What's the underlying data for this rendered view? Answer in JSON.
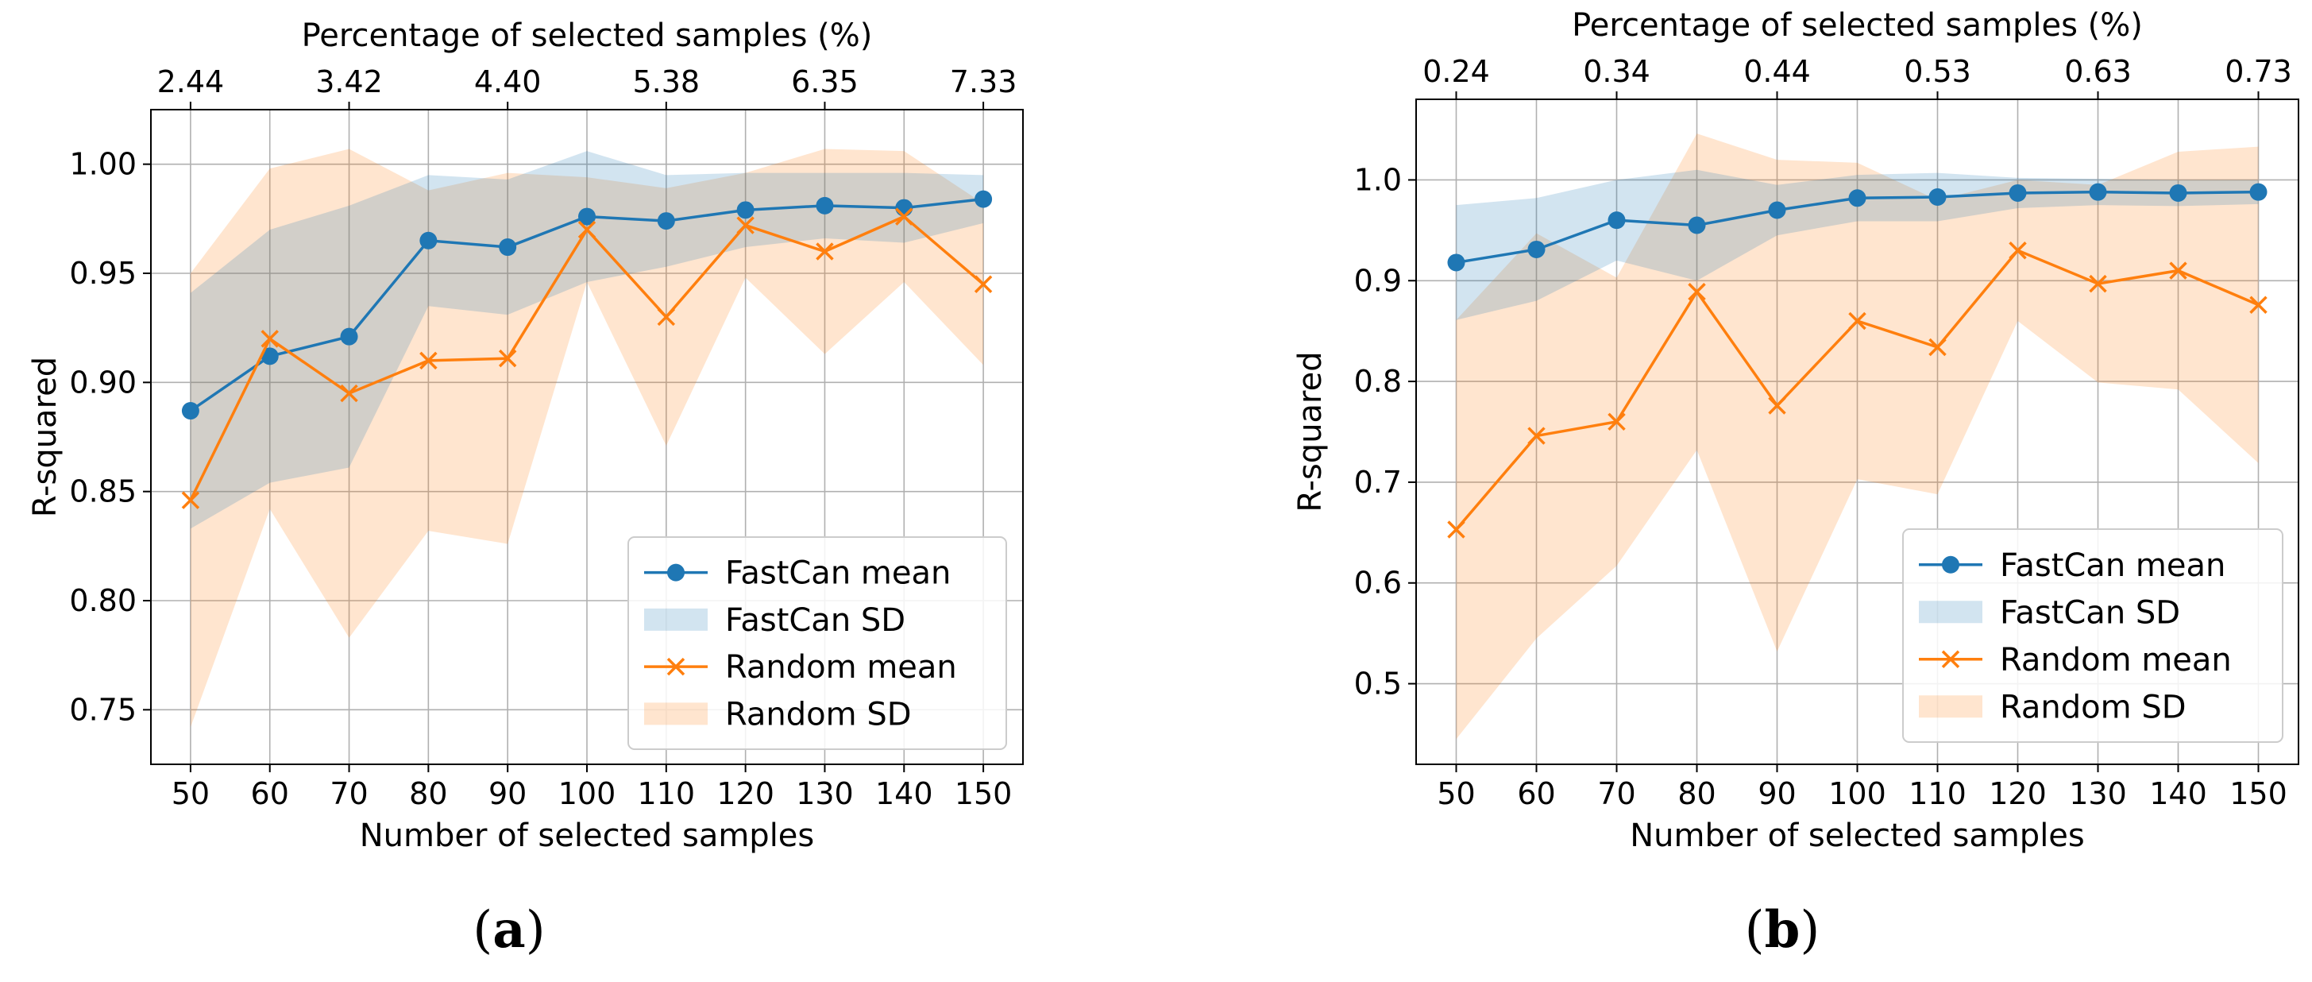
{
  "panels": [
    {
      "label": "(a)",
      "label_bold": "a"
    },
    {
      "label": "(b)",
      "label_bold": "b"
    }
  ],
  "colors": {
    "fastcan": "#1f77b4",
    "random": "#ff7f0e",
    "fastcan_band": "#1f77b4",
    "random_band": "#ff7f0e"
  },
  "chart_data": [
    {
      "type": "line",
      "id": "a",
      "xlabel": "Number of selected samples",
      "ylabel": "R-squared",
      "top_xlabel": "Percentage of selected samples (%)",
      "x": [
        50,
        60,
        70,
        80,
        90,
        100,
        110,
        120,
        130,
        140,
        150
      ],
      "xlim": [
        45,
        155
      ],
      "ylim": [
        0.725,
        1.025
      ],
      "yticks": [
        0.75,
        0.8,
        0.85,
        0.9,
        0.95,
        1.0
      ],
      "ytick_labels": [
        "0.75",
        "0.80",
        "0.85",
        "0.90",
        "0.95",
        "1.00"
      ],
      "top_ticks": [
        50,
        70,
        90,
        110,
        130,
        150
      ],
      "top_tick_labels": [
        "2.44",
        "3.42",
        "4.40",
        "5.38",
        "6.35",
        "7.33"
      ],
      "legend_position": "lower-right",
      "series": [
        {
          "name": "FastCan mean",
          "band_name": "FastCan SD",
          "marker": "circle",
          "values": [
            0.887,
            0.912,
            0.921,
            0.965,
            0.962,
            0.976,
            0.974,
            0.979,
            0.981,
            0.98,
            0.984
          ],
          "band_upper": [
            0.941,
            0.97,
            0.981,
            0.995,
            0.993,
            1.006,
            0.995,
            0.996,
            0.996,
            0.996,
            0.995
          ],
          "band_lower": [
            0.833,
            0.854,
            0.861,
            0.935,
            0.931,
            0.946,
            0.953,
            0.962,
            0.966,
            0.964,
            0.973
          ]
        },
        {
          "name": "Random mean",
          "band_name": "Random SD",
          "marker": "x",
          "values": [
            0.846,
            0.92,
            0.895,
            0.91,
            0.911,
            0.97,
            0.93,
            0.972,
            0.96,
            0.976,
            0.945
          ],
          "band_upper": [
            0.95,
            0.998,
            1.007,
            0.988,
            0.996,
            0.994,
            0.989,
            0.996,
            1.007,
            1.006,
            0.982
          ],
          "band_lower": [
            0.742,
            0.842,
            0.783,
            0.832,
            0.826,
            0.946,
            0.871,
            0.948,
            0.913,
            0.946,
            0.908
          ]
        }
      ]
    },
    {
      "type": "line",
      "id": "b",
      "xlabel": "Number of selected samples",
      "ylabel": "R-squared",
      "top_xlabel": "Percentage of selected samples (%)",
      "x": [
        50,
        60,
        70,
        80,
        90,
        100,
        110,
        120,
        130,
        140,
        150
      ],
      "xlim": [
        45,
        155
      ],
      "ylim": [
        0.42,
        1.08
      ],
      "yticks": [
        0.5,
        0.6,
        0.7,
        0.8,
        0.9,
        1.0
      ],
      "ytick_labels": [
        "0.5",
        "0.6",
        "0.7",
        "0.8",
        "0.9",
        "1.0"
      ],
      "top_ticks": [
        50,
        70,
        90,
        110,
        130,
        150
      ],
      "top_tick_labels": [
        "0.24",
        "0.34",
        "0.44",
        "0.53",
        "0.63",
        "0.73"
      ],
      "legend_position": "lower-right",
      "series": [
        {
          "name": "FastCan mean",
          "band_name": "FastCan SD",
          "marker": "circle",
          "values": [
            0.918,
            0.931,
            0.96,
            0.955,
            0.97,
            0.982,
            0.983,
            0.987,
            0.988,
            0.987,
            0.988
          ],
          "band_upper": [
            0.975,
            0.982,
            1.0,
            1.01,
            0.995,
            1.005,
            1.007,
            1.002,
            1.001,
            1.0,
            1.0
          ],
          "band_lower": [
            0.861,
            0.88,
            0.92,
            0.9,
            0.945,
            0.959,
            0.959,
            0.972,
            0.975,
            0.974,
            0.976
          ]
        },
        {
          "name": "Random mean",
          "band_name": "Random SD",
          "marker": "x",
          "values": [
            0.653,
            0.746,
            0.76,
            0.889,
            0.776,
            0.86,
            0.834,
            0.93,
            0.897,
            0.91,
            0.876
          ],
          "band_upper": [
            0.861,
            0.947,
            0.903,
            1.046,
            1.02,
            1.017,
            0.98,
            1.0,
            0.995,
            1.028,
            1.033
          ],
          "band_lower": [
            0.445,
            0.545,
            0.617,
            0.732,
            0.532,
            0.703,
            0.688,
            0.86,
            0.799,
            0.792,
            0.719
          ]
        }
      ]
    }
  ]
}
